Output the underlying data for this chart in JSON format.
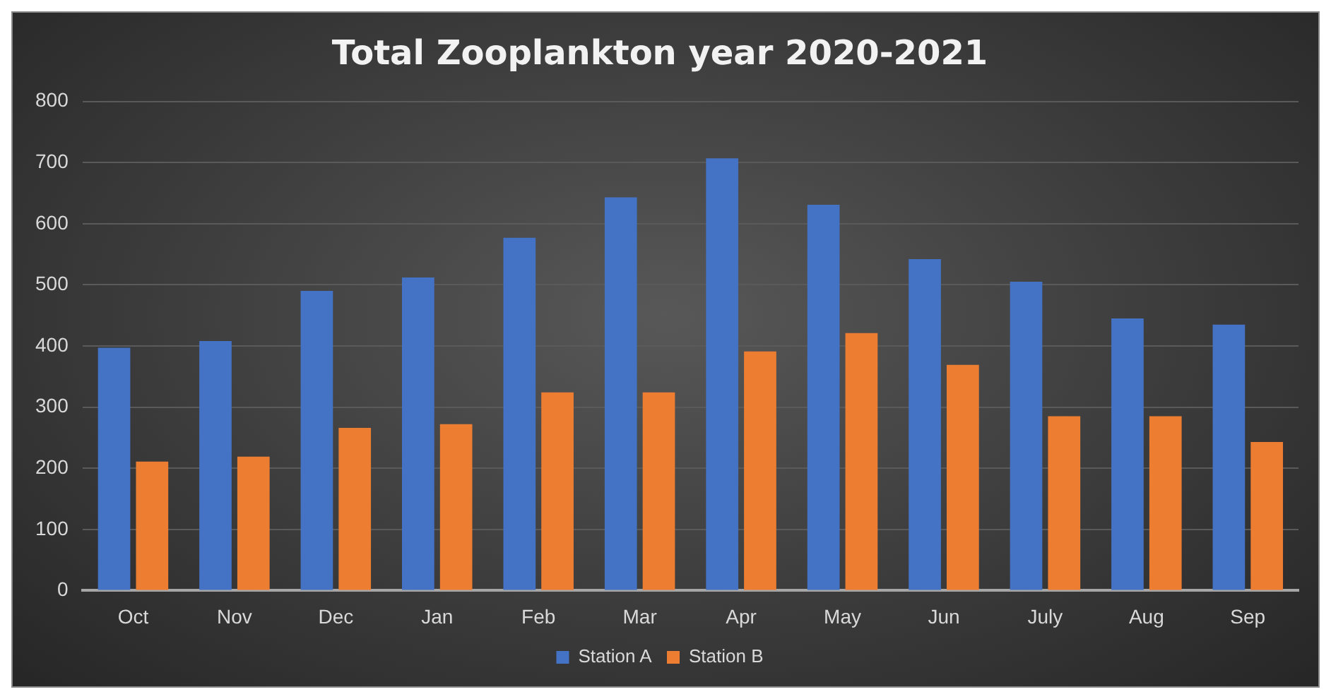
{
  "chart_data": {
    "type": "bar",
    "title": "Total Zooplankton year 2020-2021",
    "categories": [
      "Oct",
      "Nov",
      "Dec",
      "Jan",
      "Feb",
      "Mar",
      "Apr",
      "May",
      "Jun",
      "July",
      "Aug",
      "Sep"
    ],
    "series": [
      {
        "name": "Station A",
        "color": "#4472c4",
        "values": [
          397,
          408,
          490,
          512,
          577,
          643,
          707,
          631,
          542,
          505,
          445,
          435
        ]
      },
      {
        "name": "Station B",
        "color": "#ed7d31",
        "values": [
          211,
          219,
          266,
          272,
          324,
          324,
          391,
          421,
          369,
          285,
          285,
          243
        ]
      }
    ],
    "ylim": [
      0,
      800
    ],
    "yticks": [
      0,
      100,
      200,
      300,
      400,
      500,
      600,
      700,
      800
    ],
    "grid": "y",
    "legend": "bottom"
  }
}
